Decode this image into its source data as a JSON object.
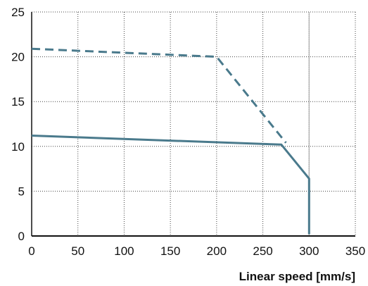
{
  "chart_data": {
    "type": "line",
    "title": "",
    "xlabel": "Linear speed [mm/s]",
    "ylabel": "",
    "xlim": [
      0,
      350
    ],
    "ylim": [
      0,
      25
    ],
    "xticks": [
      0,
      50,
      100,
      150,
      200,
      250,
      300,
      350
    ],
    "yticks": [
      0,
      5,
      10,
      15,
      20,
      25
    ],
    "grid": true,
    "legend": "none",
    "reference_lines": [
      {
        "x": 300,
        "color": "#aaaaaa"
      }
    ],
    "series": [
      {
        "style": "dashed",
        "color": "#4a7a8c",
        "points": [
          [
            0,
            20.9
          ],
          [
            200,
            20.0
          ],
          [
            275,
            10.4
          ]
        ]
      },
      {
        "style": "solid",
        "color": "#4a7a8c",
        "points": [
          [
            0,
            11.2
          ],
          [
            270,
            10.2
          ],
          [
            300,
            6.4
          ],
          [
            300,
            0.2
          ]
        ]
      }
    ]
  }
}
